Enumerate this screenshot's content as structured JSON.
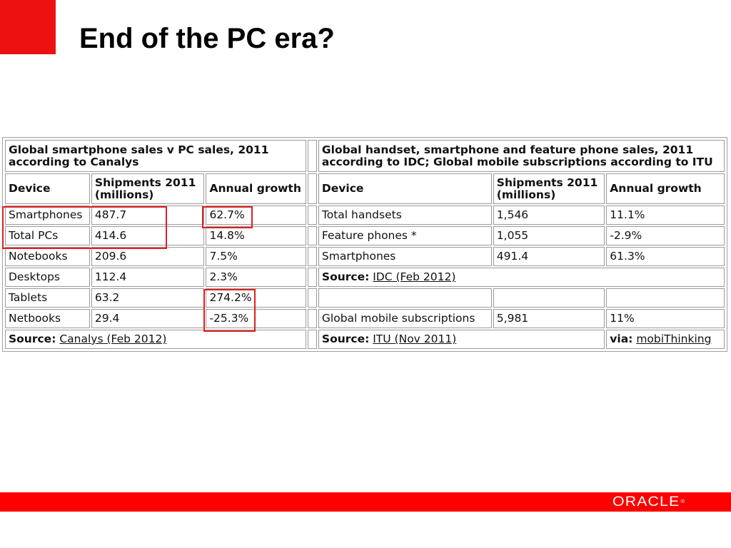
{
  "slide": {
    "title": "End of the PC era?",
    "accent_color": "#ee1111",
    "footer_color": "#ff0000",
    "logo_text": "ORACLE",
    "logo_mark": "®"
  },
  "left_table": {
    "caption": "Global smartphone sales v PC sales, 2011 according to Canalys",
    "headers": [
      "Device",
      "Shipments 2011 (millions)",
      "Annual growth"
    ],
    "rows": [
      [
        "Smartphones",
        "487.7",
        "62.7%"
      ],
      [
        "Total PCs",
        "414.6",
        "14.8%"
      ],
      [
        "Notebooks",
        "209.6",
        "7.5%"
      ],
      [
        "Desktops",
        "112.4",
        "2.3%"
      ],
      [
        "Tablets",
        "63.2",
        "274.2%"
      ],
      [
        "Netbooks",
        "29.4",
        "-25.3%"
      ]
    ],
    "source_label": "Source:",
    "source_link": "Canalys (Feb 2012)"
  },
  "right_table": {
    "caption": "Global handset, smartphone and feature phone sales, 2011 according to IDC; Global mobile subscriptions according to ITU",
    "headers": [
      "Device",
      "Shipments 2011 (millions)",
      "Annual growth"
    ],
    "rows": [
      [
        "Total handsets",
        "1,546",
        "11.1%"
      ],
      [
        "Feature phones *",
        "1,055",
        "-2.9%"
      ],
      [
        "Smartphones",
        "491.4",
        "61.3%"
      ]
    ],
    "idc_source_label": "Source:",
    "idc_source_link": "IDC (Feb 2012)",
    "subscriptions": [
      "Global mobile subscriptions",
      "5,981",
      "11%"
    ],
    "itu_source_label": "Source:",
    "itu_source_link": "ITU (Nov 2011)",
    "via_label": "via:",
    "via_link": "mobiThinking"
  },
  "highlight_color": "#e02020"
}
